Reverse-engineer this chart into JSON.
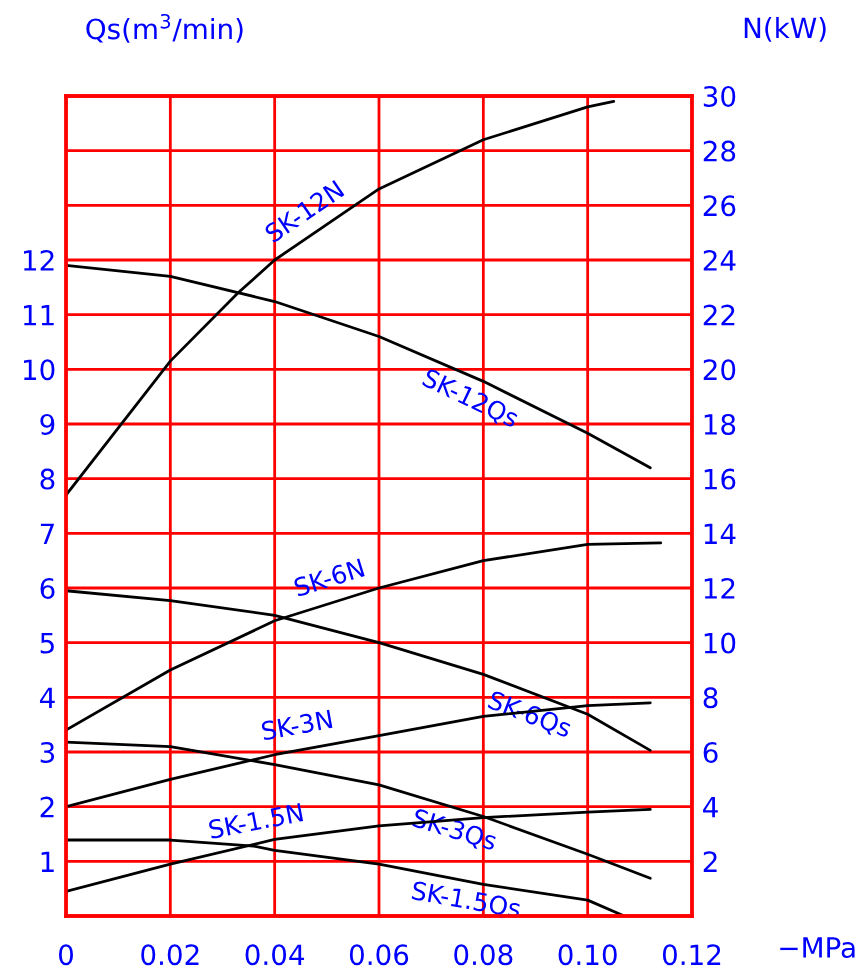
{
  "chart_data": {
    "type": "line",
    "xlabel": "−MPa",
    "ylabel": "Qs(m$^{3}$/min)",
    "y2label": "N(kW)",
    "xlim": [
      0,
      0.12
    ],
    "xticks": [
      {
        "value": 0,
        "label": "0"
      },
      {
        "value": 0.02,
        "label": "0.02"
      },
      {
        "value": 0.04,
        "label": "0.04"
      },
      {
        "value": 0.06,
        "label": "0.06"
      },
      {
        "value": 0.08,
        "label": "0.08"
      },
      {
        "value": 0.1,
        "label": "0.10"
      },
      {
        "value": 0.12,
        "label": "0.12"
      }
    ],
    "ylim": [
      0,
      15
    ],
    "yticks": [
      1,
      2,
      3,
      4,
      5,
      6,
      7,
      8,
      9,
      10,
      11,
      12,
      {
        "value": 13,
        "label": null
      },
      {
        "value": 14,
        "label": null
      },
      {
        "value": 15,
        "label": null
      }
    ],
    "y2lim": [
      0,
      30
    ],
    "y2ticks": [
      2,
      4,
      6,
      8,
      10,
      12,
      14,
      16,
      18,
      20,
      22,
      24,
      26,
      28,
      30
    ],
    "grid": true,
    "series": [
      {
        "name": "SK-12N",
        "axis": "y2",
        "color": "#000000",
        "x": [
          0,
          0.02,
          0.033,
          0.04,
          0.06,
          0.08,
          0.1,
          0.105
        ],
        "values": [
          15.4,
          20.3,
          22.8,
          24.0,
          26.6,
          28.4,
          29.6,
          29.8
        ]
      },
      {
        "name": "SK-12Qs",
        "color": "#000000",
        "x": [
          0,
          0.02,
          0.04,
          0.06,
          0.08,
          0.1,
          0.112
        ],
        "values": [
          11.9,
          11.7,
          11.24,
          10.6,
          9.78,
          8.83,
          8.2
        ]
      },
      {
        "name": "SK-6N",
        "axis": "y2",
        "color": "#000000",
        "x": [
          0,
          0.02,
          0.04,
          0.06,
          0.08,
          0.1,
          0.114
        ],
        "values": [
          6.8,
          9.0,
          10.8,
          12.0,
          13.0,
          13.6,
          13.65
        ]
      },
      {
        "name": "SK-6Qs",
        "color": "#000000",
        "x": [
          0,
          0.02,
          0.04,
          0.06,
          0.08,
          0.1,
          0.112
        ],
        "values": [
          5.95,
          5.77,
          5.5,
          5.0,
          4.42,
          3.69,
          3.03
        ]
      },
      {
        "name": "SK-3N",
        "axis": "y2",
        "color": "#000000",
        "x": [
          0,
          0.02,
          0.04,
          0.06,
          0.08,
          0.1,
          0.112
        ],
        "values": [
          4.0,
          5.0,
          5.9,
          6.6,
          7.3,
          7.7,
          7.8
        ]
      },
      {
        "name": "SK-3Qs",
        "color": "#000000",
        "x": [
          0,
          0.02,
          0.04,
          0.06,
          0.08,
          0.1,
          0.112
        ],
        "values": [
          3.18,
          3.1,
          2.77,
          2.4,
          1.82,
          1.13,
          0.69
        ]
      },
      {
        "name": "SK-1.5N",
        "axis": "y2",
        "color": "#000000",
        "x": [
          0,
          0.02,
          0.04,
          0.06,
          0.08,
          0.1,
          0.112
        ],
        "values": [
          0.9,
          1.9,
          2.8,
          3.3,
          3.6,
          3.8,
          3.9
        ]
      },
      {
        "name": "SK-1.5Qs",
        "color": "#000000",
        "x": [
          0,
          0.02,
          0.036,
          0.04,
          0.06,
          0.08,
          0.1,
          0.107
        ],
        "values": [
          1.39,
          1.39,
          1.28,
          1.2,
          0.95,
          0.58,
          0.29,
          0.0
        ]
      }
    ]
  }
}
